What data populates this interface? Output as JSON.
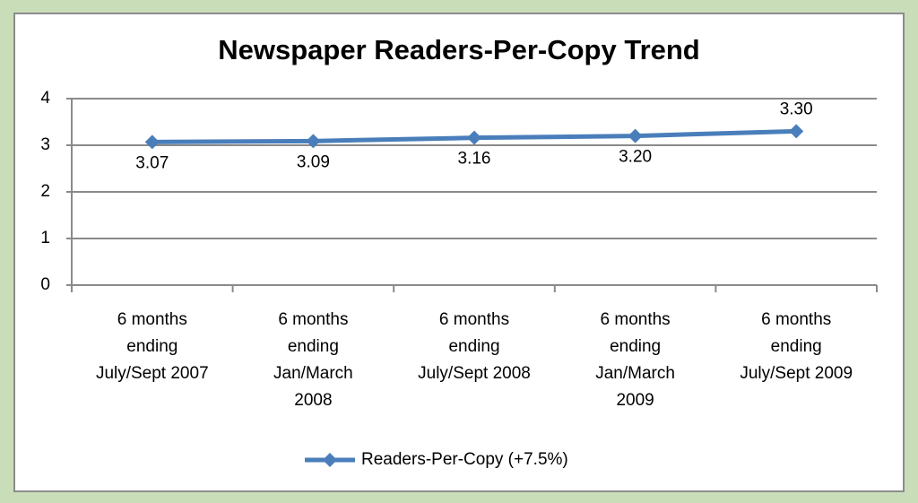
{
  "chart_data": {
    "type": "line",
    "title": "Newspaper Readers-Per-Copy Trend",
    "categories": [
      "6 months\nending\nJuly/Sept 2007",
      "6 months\nending\nJan/March\n2008",
      "6 months\nending\nJuly/Sept 2008",
      "6 months\nending\nJan/March\n2009",
      "6 months\nending\nJuly/Sept 2009"
    ],
    "series": [
      {
        "name": "Readers-Per-Copy (+7.5%)",
        "color": "#4a7ebb",
        "values": [
          3.07,
          3.09,
          3.16,
          3.2,
          3.3
        ],
        "value_labels": [
          "3.07",
          "3.09",
          "3.16",
          "3.20",
          "3.30"
        ]
      }
    ],
    "ylim": [
      0,
      4
    ],
    "yticks": [
      0,
      1,
      2,
      3,
      4
    ],
    "grid": true,
    "legend": "bottom"
  }
}
